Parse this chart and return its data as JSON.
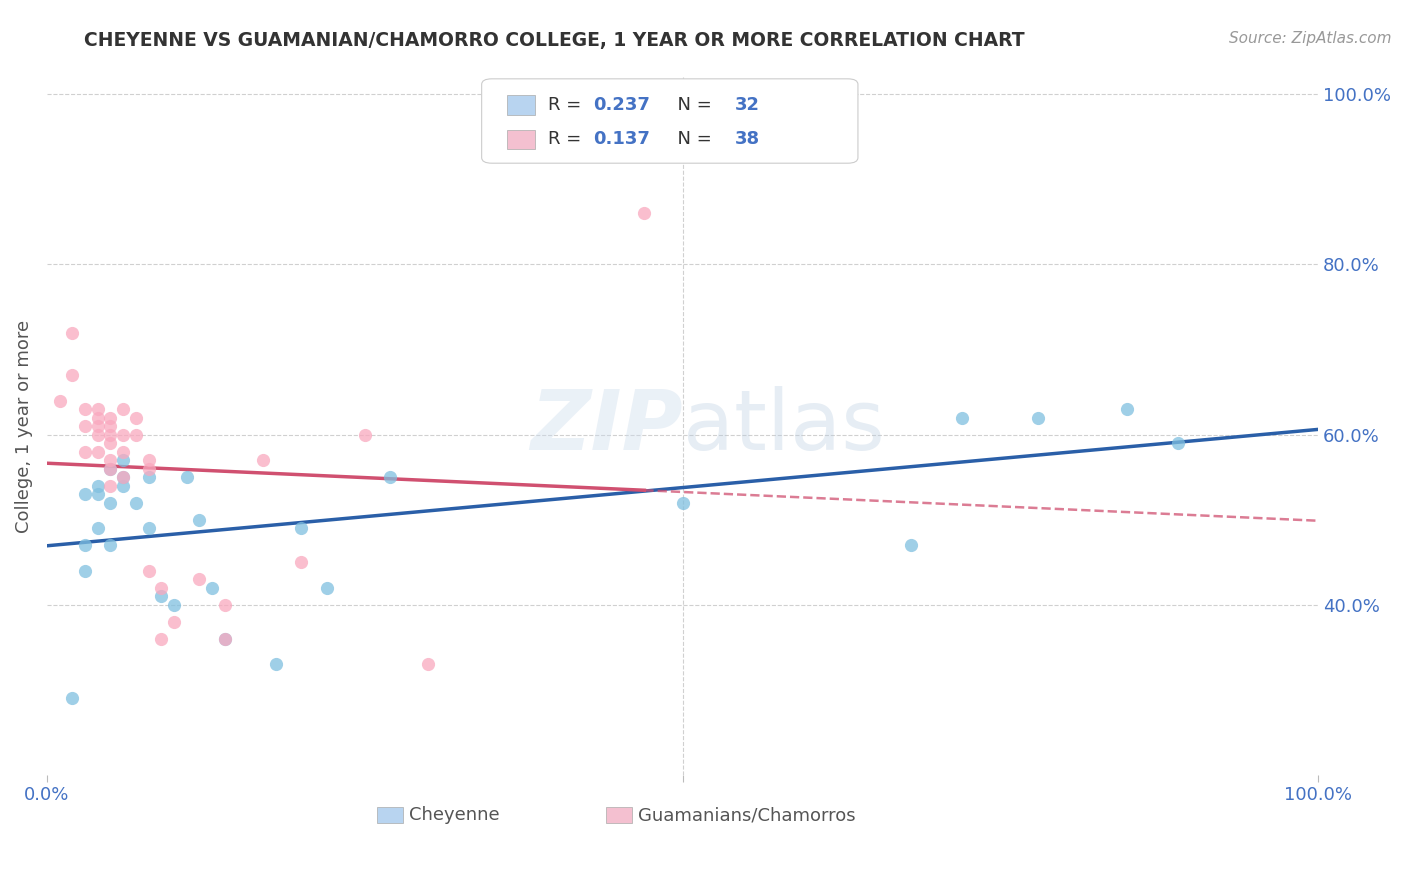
{
  "title": "CHEYENNE VS GUAMANIAN/CHAMORRO COLLEGE, 1 YEAR OR MORE CORRELATION CHART",
  "source": "Source: ZipAtlas.com",
  "ylabel": "College, 1 year or more",
  "xlim": [
    0.0,
    1.0
  ],
  "ylim": [
    0.2,
    1.02
  ],
  "ytick_labels_right": [
    "100.0%",
    "80.0%",
    "60.0%",
    "40.0%"
  ],
  "ytick_positions_right": [
    1.0,
    0.8,
    0.6,
    0.4
  ],
  "grid_color": "#d0d0d0",
  "background_color": "#ffffff",
  "cheyenne_color": "#7fbfdf",
  "guamanian_color": "#f9a8be",
  "cheyenne_R": 0.237,
  "cheyenne_N": 32,
  "guamanian_R": 0.137,
  "guamanian_N": 38,
  "cheyenne_x": [
    0.02,
    0.03,
    0.03,
    0.03,
    0.04,
    0.04,
    0.04,
    0.05,
    0.05,
    0.05,
    0.06,
    0.06,
    0.06,
    0.07,
    0.08,
    0.08,
    0.09,
    0.1,
    0.11,
    0.12,
    0.13,
    0.14,
    0.18,
    0.2,
    0.22,
    0.27,
    0.5,
    0.68,
    0.72,
    0.78,
    0.85,
    0.89
  ],
  "cheyenne_y": [
    0.29,
    0.53,
    0.47,
    0.44,
    0.53,
    0.49,
    0.54,
    0.47,
    0.52,
    0.56,
    0.54,
    0.57,
    0.55,
    0.52,
    0.49,
    0.55,
    0.41,
    0.4,
    0.55,
    0.5,
    0.42,
    0.36,
    0.33,
    0.49,
    0.42,
    0.55,
    0.52,
    0.47,
    0.62,
    0.62,
    0.63,
    0.59
  ],
  "guamanian_x": [
    0.01,
    0.02,
    0.02,
    0.03,
    0.03,
    0.03,
    0.04,
    0.04,
    0.04,
    0.04,
    0.04,
    0.05,
    0.05,
    0.05,
    0.05,
    0.05,
    0.05,
    0.05,
    0.06,
    0.06,
    0.06,
    0.06,
    0.07,
    0.07,
    0.08,
    0.08,
    0.08,
    0.09,
    0.09,
    0.1,
    0.12,
    0.14,
    0.14,
    0.17,
    0.2,
    0.25,
    0.3,
    0.47
  ],
  "guamanian_y": [
    0.64,
    0.72,
    0.67,
    0.63,
    0.61,
    0.58,
    0.62,
    0.61,
    0.6,
    0.63,
    0.58,
    0.62,
    0.6,
    0.61,
    0.59,
    0.57,
    0.56,
    0.54,
    0.63,
    0.6,
    0.58,
    0.55,
    0.62,
    0.6,
    0.57,
    0.56,
    0.44,
    0.42,
    0.36,
    0.38,
    0.43,
    0.4,
    0.36,
    0.57,
    0.45,
    0.6,
    0.33,
    0.86
  ],
  "legend_box_color_cheyenne": "#b8d4f0",
  "legend_box_color_guamanian": "#f4c0d0",
  "title_color": "#333333",
  "label_color": "#4472c4",
  "tick_label_color": "#4472c4",
  "cheyenne_line_color": "#2a5fa8",
  "guamanian_line_color": "#d05070"
}
